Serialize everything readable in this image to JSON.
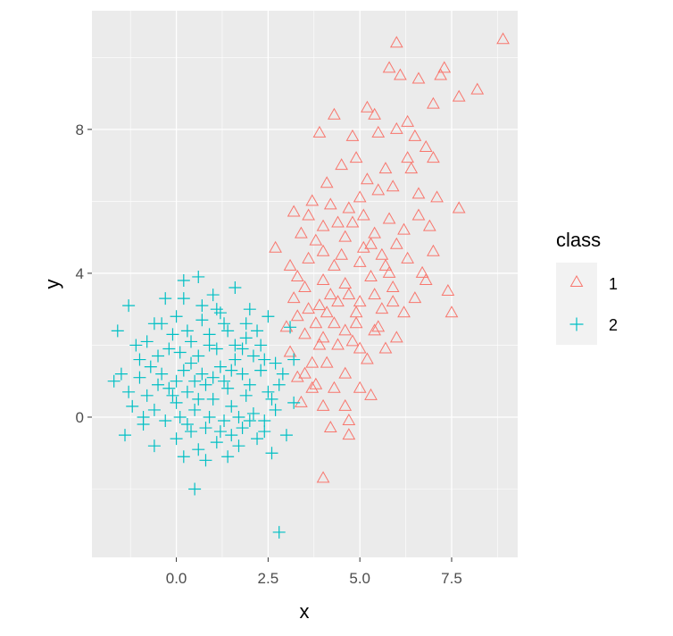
{
  "chart_data": {
    "type": "scatter",
    "xlabel": "x",
    "ylabel": "y",
    "xlim": [
      -2.3,
      9.3
    ],
    "ylim": [
      -3.9,
      11.3
    ],
    "x_ticks": [
      0.0,
      2.5,
      5.0,
      7.5
    ],
    "x_tick_labels": [
      "0.0",
      "2.5",
      "5.0",
      "7.5"
    ],
    "y_ticks": [
      0,
      4,
      8
    ],
    "y_tick_labels": [
      "0",
      "4",
      "8"
    ],
    "grid": true,
    "legend": {
      "title": "class",
      "position": "right",
      "entries": [
        {
          "label": "1",
          "shape": "triangle",
          "color": "#F8766D"
        },
        {
          "label": "2",
          "shape": "plus",
          "color": "#00BFC4"
        }
      ]
    },
    "series": [
      {
        "name": "1",
        "shape": "triangle",
        "color": "#F8766D",
        "points": [
          [
            6.0,
            10.4
          ],
          [
            8.9,
            10.5
          ],
          [
            7.3,
            9.7
          ],
          [
            8.2,
            9.1
          ],
          [
            7.7,
            8.9
          ],
          [
            7.0,
            8.7
          ],
          [
            5.4,
            8.4
          ],
          [
            4.3,
            8.4
          ],
          [
            3.9,
            7.9
          ],
          [
            6.0,
            8.0
          ],
          [
            6.8,
            7.5
          ],
          [
            6.3,
            7.2
          ],
          [
            5.7,
            6.9
          ],
          [
            4.9,
            7.2
          ],
          [
            4.5,
            7.0
          ],
          [
            5.2,
            6.6
          ],
          [
            5.9,
            6.4
          ],
          [
            6.6,
            6.2
          ],
          [
            7.1,
            6.1
          ],
          [
            7.7,
            5.8
          ],
          [
            6.6,
            5.6
          ],
          [
            5.8,
            5.5
          ],
          [
            5.1,
            5.6
          ],
          [
            4.7,
            5.8
          ],
          [
            4.2,
            5.9
          ],
          [
            3.7,
            6.0
          ],
          [
            3.2,
            5.7
          ],
          [
            4.0,
            5.3
          ],
          [
            4.6,
            5.0
          ],
          [
            5.4,
            5.1
          ],
          [
            6.2,
            5.2
          ],
          [
            6.9,
            5.3
          ],
          [
            4.0,
            4.6
          ],
          [
            3.6,
            4.4
          ],
          [
            3.1,
            4.2
          ],
          [
            2.7,
            4.7
          ],
          [
            4.3,
            4.2
          ],
          [
            5.0,
            4.3
          ],
          [
            5.6,
            4.5
          ],
          [
            6.3,
            4.4
          ],
          [
            7.0,
            4.6
          ],
          [
            4.0,
            3.8
          ],
          [
            3.5,
            3.6
          ],
          [
            4.6,
            3.7
          ],
          [
            5.3,
            3.9
          ],
          [
            5.9,
            3.6
          ],
          [
            6.5,
            3.3
          ],
          [
            7.4,
            3.5
          ],
          [
            3.2,
            3.3
          ],
          [
            3.9,
            3.1
          ],
          [
            4.4,
            3.2
          ],
          [
            5.0,
            3.2
          ],
          [
            5.6,
            3.0
          ],
          [
            6.2,
            2.9
          ],
          [
            7.5,
            2.9
          ],
          [
            3.3,
            2.8
          ],
          [
            3.8,
            2.6
          ],
          [
            4.3,
            2.6
          ],
          [
            4.9,
            2.6
          ],
          [
            5.5,
            2.5
          ],
          [
            6.0,
            2.2
          ],
          [
            3.5,
            2.3
          ],
          [
            4.0,
            2.2
          ],
          [
            4.4,
            2.0
          ],
          [
            4.8,
            2.1
          ],
          [
            5.2,
            1.6
          ],
          [
            3.1,
            1.8
          ],
          [
            3.7,
            1.5
          ],
          [
            4.1,
            1.5
          ],
          [
            4.6,
            1.2
          ],
          [
            3.3,
            1.1
          ],
          [
            3.8,
            0.9
          ],
          [
            4.3,
            0.8
          ],
          [
            5.0,
            0.8
          ],
          [
            5.3,
            0.6
          ],
          [
            3.4,
            0.4
          ],
          [
            3.7,
            0.8
          ],
          [
            4.6,
            0.3
          ],
          [
            4.7,
            -0.1
          ],
          [
            4.2,
            -0.3
          ],
          [
            4.7,
            -0.5
          ],
          [
            4.0,
            -1.7
          ],
          [
            5.5,
            7.9
          ],
          [
            4.8,
            7.8
          ],
          [
            6.4,
            6.9
          ],
          [
            5.0,
            6.1
          ],
          [
            4.4,
            5.4
          ],
          [
            3.4,
            5.1
          ],
          [
            6.0,
            4.8
          ],
          [
            5.1,
            4.7
          ],
          [
            3.3,
            3.9
          ],
          [
            6.7,
            4.0
          ],
          [
            4.7,
            3.4
          ],
          [
            5.8,
            4.0
          ],
          [
            4.1,
            2.9
          ],
          [
            3.0,
            2.5
          ],
          [
            5.7,
            1.9
          ],
          [
            4.0,
            0.3
          ],
          [
            6.5,
            7.8
          ],
          [
            5.2,
            8.6
          ],
          [
            6.1,
            9.5
          ],
          [
            5.8,
            9.7
          ],
          [
            6.6,
            9.4
          ],
          [
            7.2,
            9.5
          ],
          [
            6.3,
            8.2
          ],
          [
            7.0,
            7.2
          ],
          [
            5.5,
            6.3
          ],
          [
            4.1,
            6.5
          ],
          [
            3.6,
            5.6
          ],
          [
            4.8,
            5.4
          ],
          [
            5.3,
            4.8
          ],
          [
            3.8,
            4.9
          ],
          [
            4.5,
            4.5
          ],
          [
            5.7,
            4.2
          ],
          [
            6.8,
            3.8
          ],
          [
            4.2,
            3.4
          ],
          [
            5.4,
            3.4
          ],
          [
            3.6,
            3.0
          ],
          [
            4.9,
            2.9
          ],
          [
            5.9,
            3.2
          ],
          [
            3.9,
            2.0
          ],
          [
            5.4,
            2.4
          ],
          [
            3.5,
            1.2
          ],
          [
            4.6,
            2.4
          ],
          [
            5.0,
            1.9
          ]
        ]
      },
      {
        "name": "2",
        "shape": "plus",
        "color": "#00BFC4",
        "points": [
          [
            0.2,
            3.8
          ],
          [
            0.6,
            3.9
          ],
          [
            1.0,
            3.4
          ],
          [
            1.6,
            3.6
          ],
          [
            -1.3,
            3.1
          ],
          [
            -1.6,
            2.4
          ],
          [
            -0.6,
            2.6
          ],
          [
            0.0,
            2.8
          ],
          [
            0.7,
            2.7
          ],
          [
            1.2,
            2.9
          ],
          [
            2.0,
            3.0
          ],
          [
            2.5,
            2.8
          ],
          [
            -0.8,
            2.1
          ],
          [
            -0.1,
            2.3
          ],
          [
            0.4,
            2.1
          ],
          [
            0.9,
            2.3
          ],
          [
            1.4,
            2.4
          ],
          [
            1.9,
            2.2
          ],
          [
            2.3,
            2.0
          ],
          [
            -1.0,
            1.6
          ],
          [
            -0.5,
            1.7
          ],
          [
            0.1,
            1.8
          ],
          [
            0.6,
            1.7
          ],
          [
            1.1,
            1.9
          ],
          [
            1.6,
            1.6
          ],
          [
            2.1,
            1.7
          ],
          [
            2.7,
            1.5
          ],
          [
            -1.5,
            1.2
          ],
          [
            -1.0,
            1.1
          ],
          [
            -0.4,
            1.2
          ],
          [
            0.2,
            1.3
          ],
          [
            0.7,
            1.2
          ],
          [
            1.2,
            1.4
          ],
          [
            1.8,
            1.2
          ],
          [
            2.3,
            1.3
          ],
          [
            2.8,
            0.9
          ],
          [
            -1.7,
            1.0
          ],
          [
            -0.8,
            0.6
          ],
          [
            -0.2,
            0.8
          ],
          [
            0.3,
            0.7
          ],
          [
            0.8,
            0.9
          ],
          [
            1.4,
            0.8
          ],
          [
            1.9,
            0.6
          ],
          [
            2.5,
            0.7
          ],
          [
            -1.2,
            0.3
          ],
          [
            -0.6,
            0.2
          ],
          [
            0.0,
            0.4
          ],
          [
            0.5,
            0.2
          ],
          [
            1.0,
            0.5
          ],
          [
            1.5,
            0.3
          ],
          [
            2.1,
            0.1
          ],
          [
            2.7,
            0.2
          ],
          [
            3.2,
            0.4
          ],
          [
            -0.9,
            -0.2
          ],
          [
            -0.3,
            -0.1
          ],
          [
            0.3,
            -0.2
          ],
          [
            0.8,
            -0.3
          ],
          [
            1.3,
            -0.1
          ],
          [
            1.8,
            -0.3
          ],
          [
            2.4,
            -0.4
          ],
          [
            -1.4,
            -0.5
          ],
          [
            -0.6,
            -0.8
          ],
          [
            0.0,
            -0.6
          ],
          [
            0.6,
            -0.9
          ],
          [
            1.1,
            -0.7
          ],
          [
            1.7,
            -0.8
          ],
          [
            2.2,
            -0.6
          ],
          [
            3.0,
            -0.5
          ],
          [
            0.2,
            -1.1
          ],
          [
            0.8,
            -1.2
          ],
          [
            1.4,
            -1.1
          ],
          [
            2.6,
            -1.0
          ],
          [
            0.5,
            -2.0
          ],
          [
            2.8,
            -3.2
          ],
          [
            3.2,
            1.6
          ],
          [
            3.1,
            2.5
          ],
          [
            -0.3,
            3.3
          ],
          [
            1.3,
            1.0
          ],
          [
            0.4,
            1.5
          ],
          [
            -0.5,
            0.9
          ],
          [
            0.9,
            0.0
          ],
          [
            1.6,
            2.0
          ],
          [
            2.0,
            0.9
          ],
          [
            -0.2,
            1.9
          ],
          [
            0.6,
            0.5
          ],
          [
            1.9,
            2.6
          ],
          [
            2.4,
            1.6
          ],
          [
            -1.1,
            2.0
          ],
          [
            0.1,
            0.0
          ],
          [
            1.2,
            -0.4
          ],
          [
            -0.4,
            2.6
          ],
          [
            2.9,
            1.2
          ],
          [
            0.7,
            3.1
          ],
          [
            1.5,
            1.3
          ],
          [
            0.0,
            1.0
          ],
          [
            1.0,
            1.1
          ],
          [
            2.2,
            2.4
          ],
          [
            -0.7,
            1.4
          ],
          [
            0.4,
            -0.4
          ],
          [
            1.7,
            0.0
          ],
          [
            2.6,
            0.5
          ],
          [
            -1.3,
            0.7
          ],
          [
            0.9,
            2.0
          ],
          [
            1.3,
            2.6
          ],
          [
            0.3,
            2.4
          ],
          [
            -0.1,
            0.6
          ],
          [
            2.0,
            -0.1
          ],
          [
            1.1,
            3.0
          ],
          [
            0.5,
            1.0
          ],
          [
            1.8,
            1.9
          ],
          [
            -0.9,
            0.0
          ],
          [
            2.4,
            -0.1
          ],
          [
            0.2,
            3.3
          ],
          [
            1.5,
            -0.5
          ]
        ]
      }
    ]
  }
}
